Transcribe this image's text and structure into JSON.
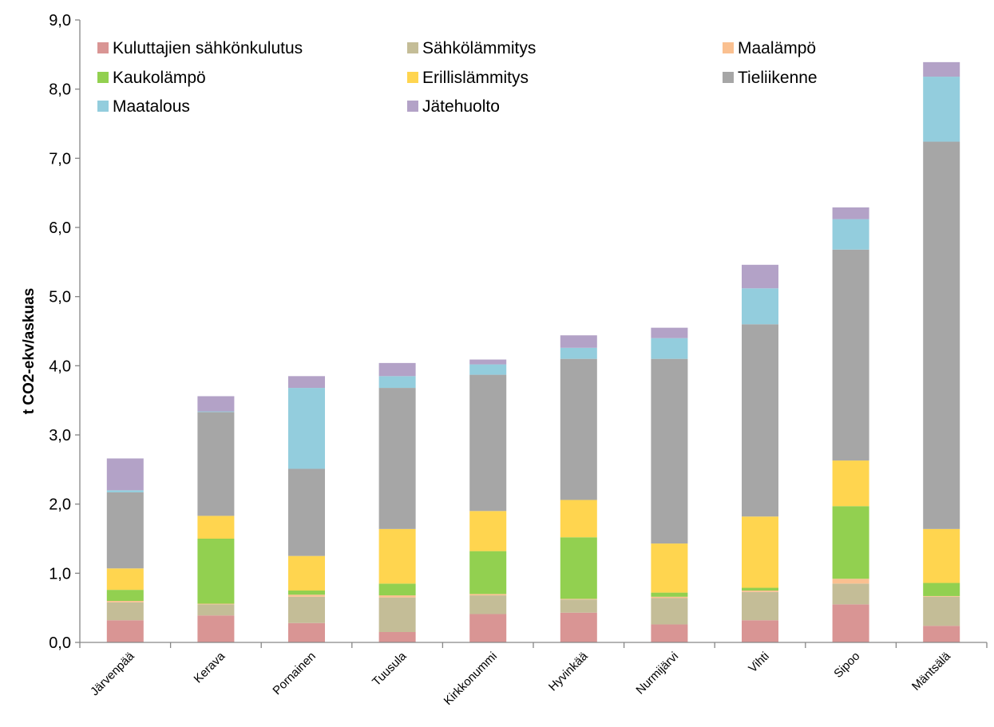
{
  "chart_data": {
    "type": "bar",
    "stacked": true,
    "title": "",
    "xlabel": "",
    "ylabel": "t CO2-ekv/askuas",
    "ylim": [
      0,
      9
    ],
    "y_tick_labels": [
      "0,0",
      "1,0",
      "2,0",
      "3,0",
      "4,0",
      "5,0",
      "6,0",
      "7,0",
      "8,0",
      "9,0"
    ],
    "grid": false,
    "legend_position": "top-left inside",
    "categories": [
      "Järvenpää",
      "Kerava",
      "Pornainen",
      "Tuusula",
      "Kirkkonummi",
      "Hyvinkää",
      "Nurmijärvi",
      "Vihti",
      "Sipoo",
      "Mäntsälä"
    ],
    "series": [
      {
        "name": "Kuluttajien sähkönkulutus",
        "color": "#D99594",
        "values": [
          0.32,
          0.39,
          0.28,
          0.15,
          0.41,
          0.43,
          0.26,
          0.32,
          0.55,
          0.24
        ]
      },
      {
        "name": "Sähkölämmitys",
        "color": "#C4BD97",
        "values": [
          0.26,
          0.16,
          0.38,
          0.5,
          0.27,
          0.19,
          0.38,
          0.41,
          0.3,
          0.42
        ]
      },
      {
        "name": "Maalämpö",
        "color": "#FAC090",
        "values": [
          0.02,
          0.01,
          0.03,
          0.03,
          0.02,
          0.01,
          0.02,
          0.02,
          0.07,
          0.01
        ]
      },
      {
        "name": "Kaukolämpö",
        "color": "#92D050",
        "values": [
          0.16,
          0.94,
          0.06,
          0.17,
          0.62,
          0.89,
          0.06,
          0.04,
          1.05,
          0.19
        ]
      },
      {
        "name": "Erillislämmitys",
        "color": "#FFD54F",
        "values": [
          0.31,
          0.33,
          0.5,
          0.79,
          0.58,
          0.54,
          0.71,
          1.03,
          0.66,
          0.78
        ]
      },
      {
        "name": "Tieliikenne",
        "color": "#A6A6A6",
        "values": [
          1.1,
          1.5,
          1.26,
          2.04,
          1.97,
          2.04,
          2.67,
          2.78,
          3.05,
          5.6
        ]
      },
      {
        "name": "Maatalous",
        "color": "#93CDDD",
        "values": [
          0.03,
          0.01,
          1.17,
          0.17,
          0.15,
          0.16,
          0.3,
          0.52,
          0.44,
          0.94
        ]
      },
      {
        "name": "Jätehuolto",
        "color": "#B3A2C7",
        "values": [
          0.46,
          0.22,
          0.17,
          0.19,
          0.07,
          0.18,
          0.15,
          0.34,
          0.17,
          0.21
        ]
      }
    ]
  }
}
